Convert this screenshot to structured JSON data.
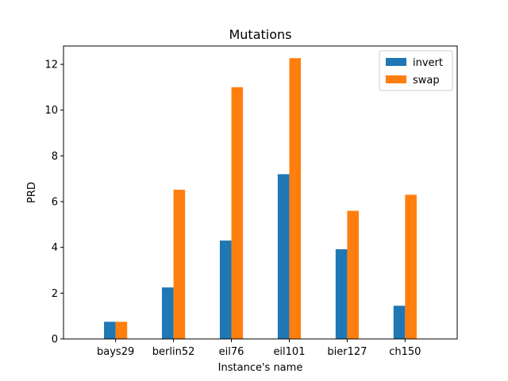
{
  "chart_data": {
    "type": "bar",
    "title": "Mutations",
    "xlabel": "Instance's name",
    "ylabel": "PRD",
    "categories": [
      "bays29",
      "berlin52",
      "eil76",
      "eil101",
      "bier127",
      "ch150"
    ],
    "series": [
      {
        "name": "invert",
        "color": "#1f77b4",
        "values": [
          0.75,
          2.25,
          4.3,
          7.2,
          3.92,
          1.45
        ]
      },
      {
        "name": "swap",
        "color": "#ff7f0e",
        "values": [
          0.75,
          6.52,
          11.0,
          12.27,
          5.6,
          6.3
        ]
      }
    ],
    "ylim": [
      0,
      12.8
    ],
    "yticks": [
      "0",
      "2",
      "4",
      "6",
      "8",
      "10",
      "12"
    ],
    "grid": false,
    "legend": "top-right"
  }
}
